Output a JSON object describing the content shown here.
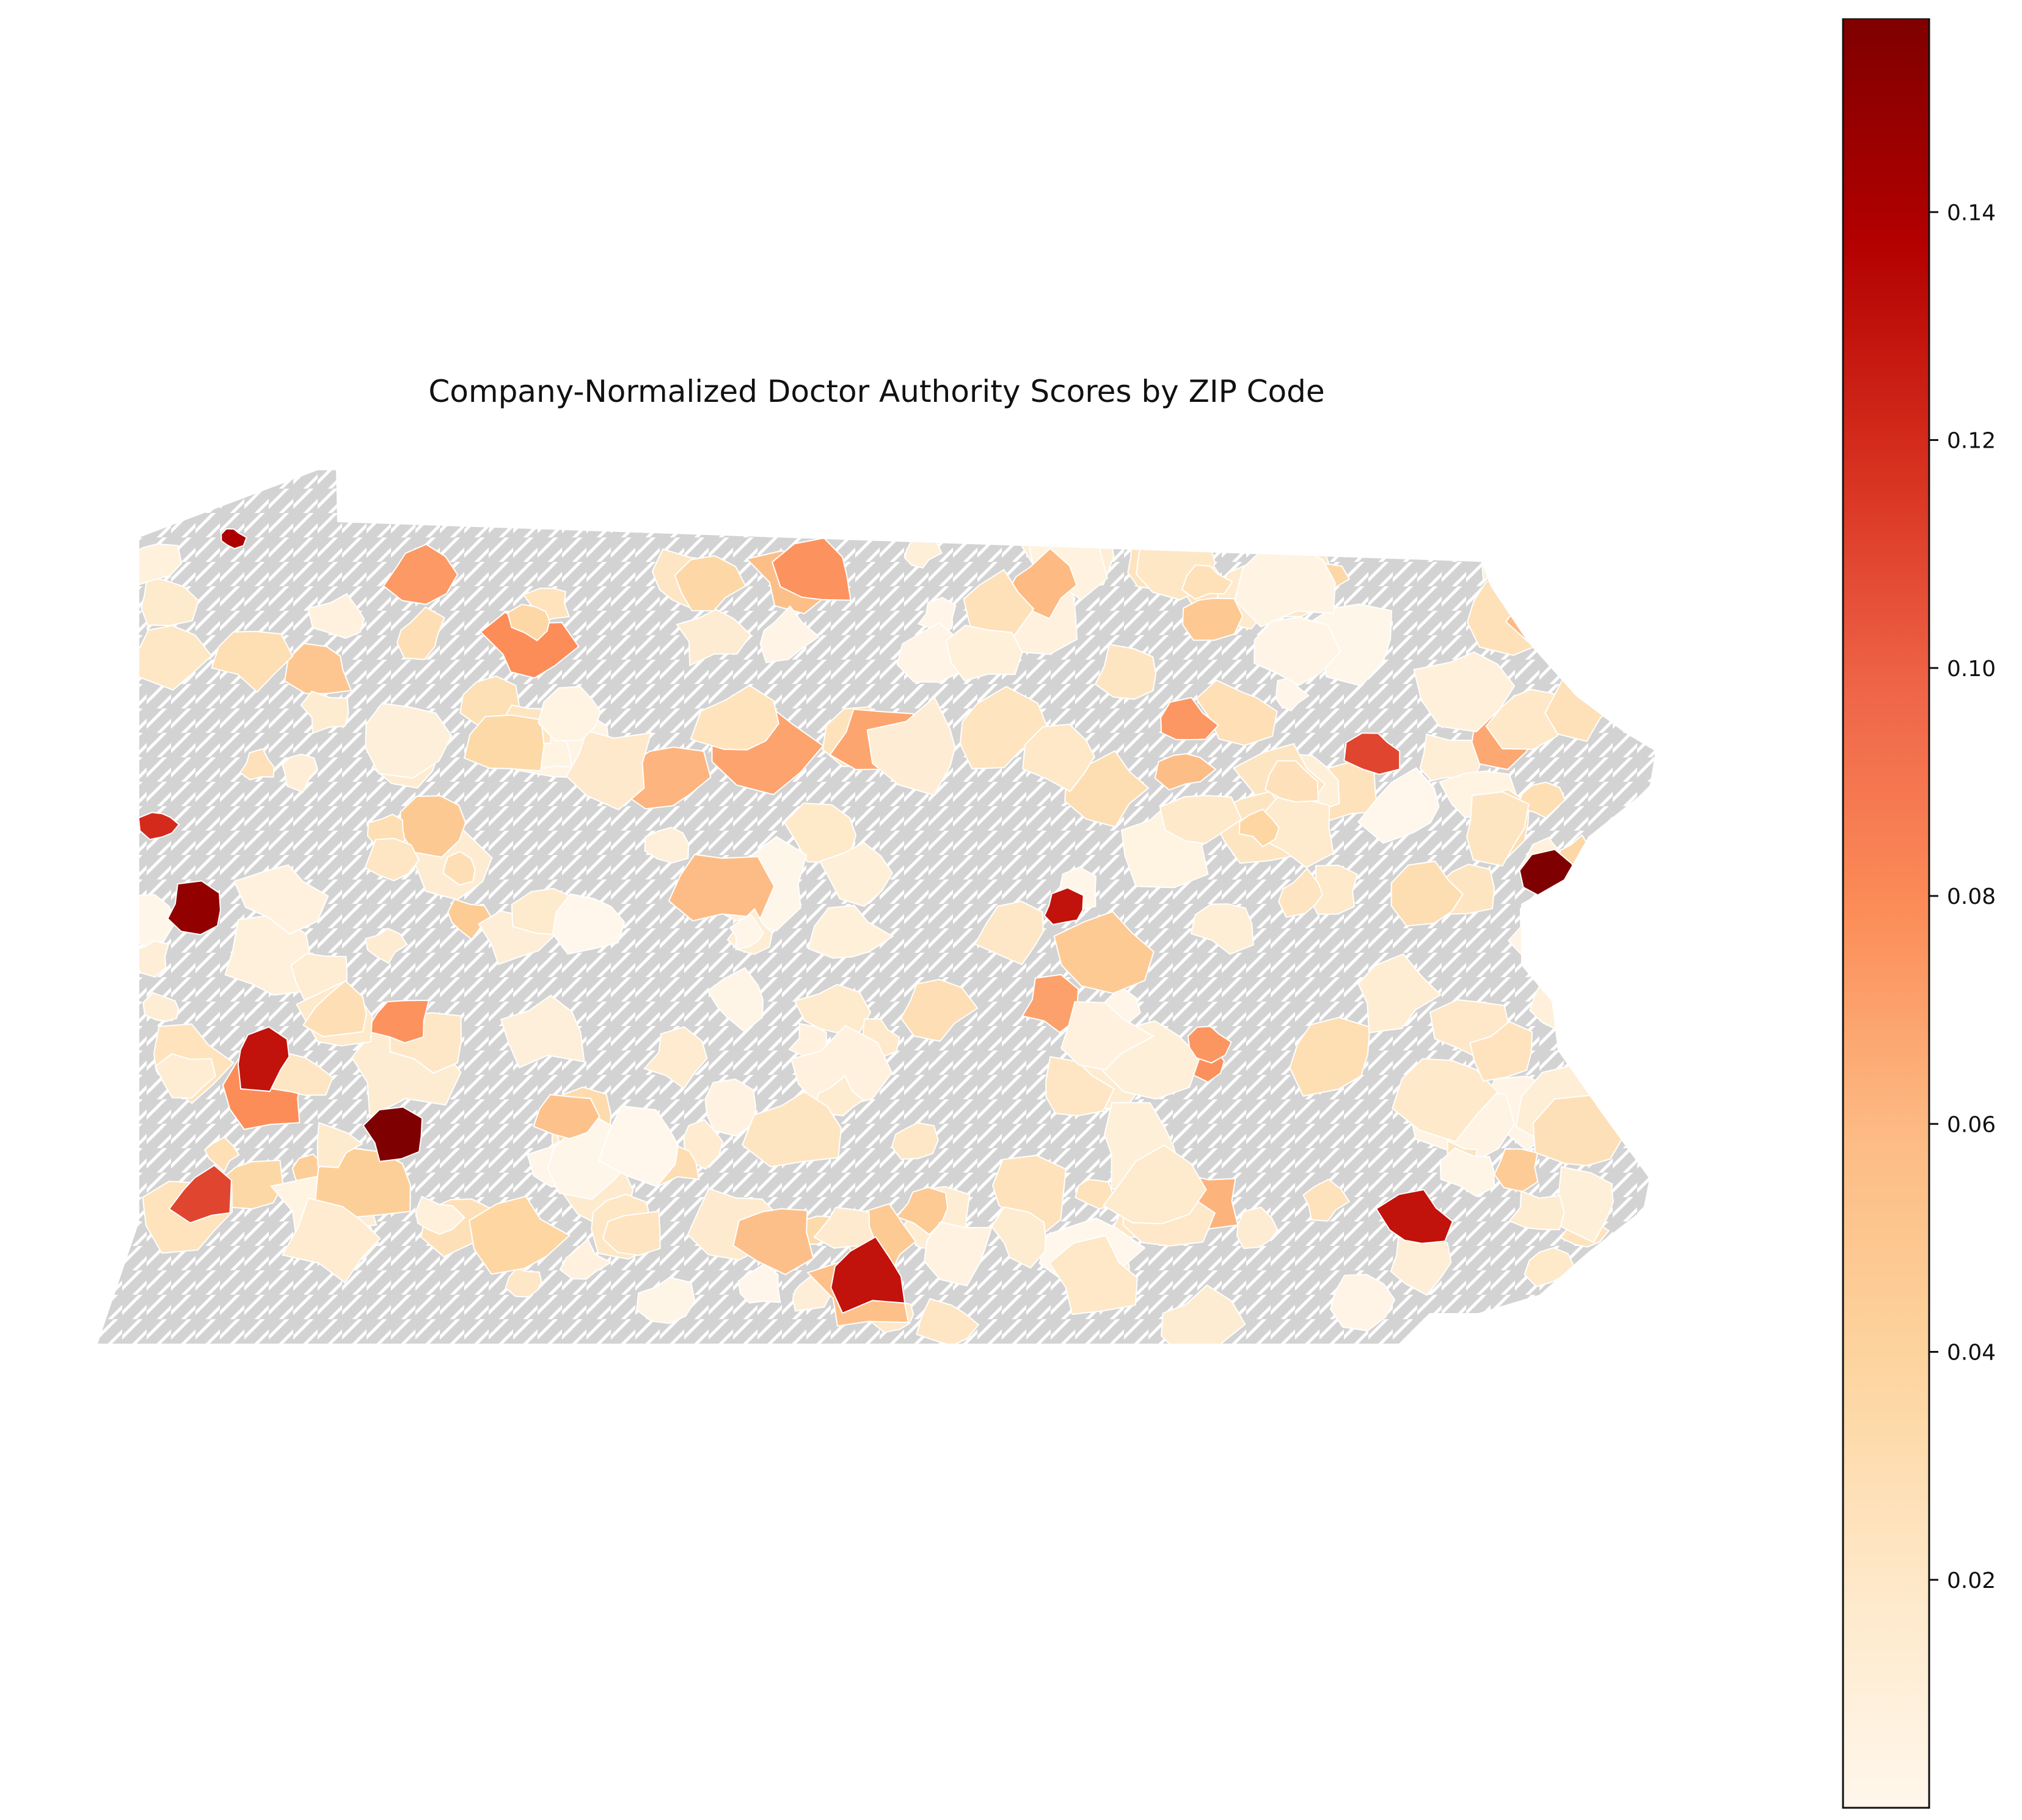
{
  "title": "Company-Normalized Doctor Authority Scores by ZIP Code",
  "colorbar": {
    "colormap": "OrRd",
    "min": 0.0,
    "max": 0.157,
    "ticks": [
      "0.02",
      "0.04",
      "0.06",
      "0.08",
      "0.10",
      "0.12",
      "0.14"
    ],
    "tick_values": [
      0.02,
      0.04,
      0.06,
      0.08,
      0.1,
      0.12,
      0.14
    ]
  },
  "colors": {
    "no_data": "#d3d3d3",
    "boundary": "#ffffff",
    "stops": [
      "#fff7ec",
      "#fee8c8",
      "#fdd49e",
      "#fdbb84",
      "#fc8d59",
      "#ef6548",
      "#d7301f",
      "#b30000",
      "#7f0000"
    ]
  },
  "chart_data": {
    "type": "heatmap",
    "region": "Pennsylvania ZIP codes",
    "no_data_style": "gray hatched",
    "highlighted_zips": [
      {
        "area": "far northwest tip",
        "value": 0.14
      },
      {
        "area": "west border upper",
        "value": 0.12
      },
      {
        "area": "west border middle",
        "value": 0.15
      },
      {
        "area": "southwest metro",
        "value": 0.13
      },
      {
        "area": "southwest metro east",
        "value": 0.157
      },
      {
        "area": "southwest lower",
        "value": 0.11
      },
      {
        "area": "south-central",
        "value": 0.13
      },
      {
        "area": "central",
        "value": 0.13
      },
      {
        "area": "northeast",
        "value": 0.11
      },
      {
        "area": "east border",
        "value": 0.157
      },
      {
        "area": "southeast metro",
        "value": 0.13
      }
    ]
  }
}
